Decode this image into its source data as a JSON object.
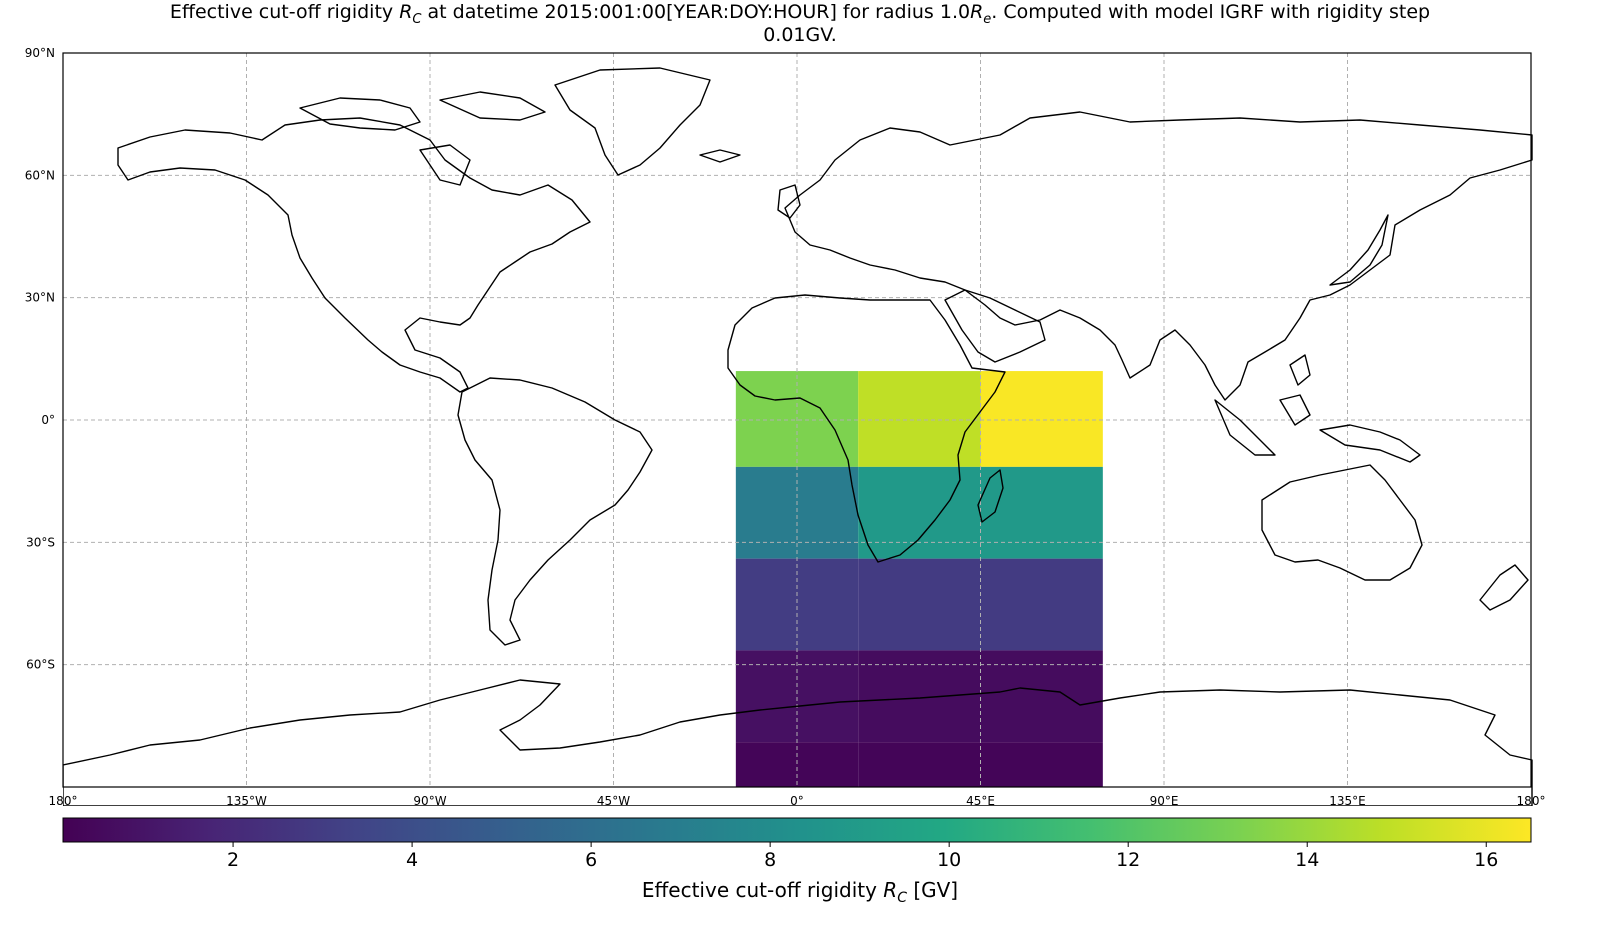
{
  "title": {
    "line1": "Effective cut-off rigidity R_C at datetime 2015:001:00[YEAR:DOY:HOUR] for radius 1.0R_e. Computed with model IGRF with rigidity step",
    "line2": "0.01GV."
  },
  "chart_data": {
    "type": "heatmap",
    "title": "Effective cut-off rigidity R_C at datetime 2015:001:00[YEAR:DOY:HOUR] for radius 1.0R_e. Computed with model IGRF with rigidity step 0.01GV.",
    "projection": "PlateCarree",
    "lon_range": [
      -180,
      180
    ],
    "lat_range": [
      -90,
      90
    ],
    "grid": true,
    "lon_ticks": [
      "180°",
      "135°W",
      "90°W",
      "45°W",
      "0°",
      "45°E",
      "90°E",
      "135°E",
      "180°"
    ],
    "lat_ticks": [
      "90°N",
      "60°N",
      "30°N",
      "0°",
      "30°S",
      "60°S"
    ],
    "lon_edges": [
      -15,
      15,
      45,
      75
    ],
    "lat_edges": [
      12,
      -11.5,
      -34,
      -56.5,
      -79,
      -90
    ],
    "values": [
      [
        13.3,
        14.9,
        16.4
      ],
      [
        6.9,
        8.9,
        8.9
      ],
      [
        3.0,
        2.9,
        2.9
      ],
      [
        0.8,
        0.6,
        0.6
      ],
      [
        0.3,
        0.3,
        0.3
      ]
    ],
    "colormap": "viridis",
    "colorbar": {
      "range": [
        0.1,
        16.5
      ],
      "ticks": [
        "2",
        "4",
        "6",
        "8",
        "10",
        "12",
        "14",
        "16"
      ],
      "tick_values": [
        2,
        4,
        6,
        8,
        10,
        12,
        14,
        16
      ],
      "label": "Effective cut-off rigidity R_C [GV]"
    }
  }
}
